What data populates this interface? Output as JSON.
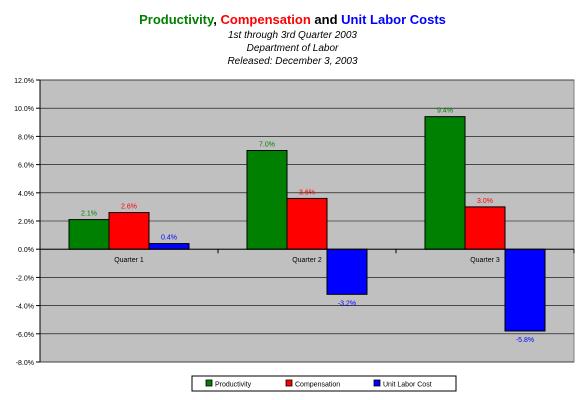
{
  "chart_data": {
    "type": "bar",
    "title_parts": [
      {
        "text": "Productivity",
        "color": "#008000"
      },
      {
        "text": ", ",
        "color": "#000000"
      },
      {
        "text": "Compensation",
        "color": "#ff0000"
      },
      {
        "text": " and ",
        "color": "#000000"
      },
      {
        "text": "Unit Labor Costs",
        "color": "#0000ff"
      }
    ],
    "subtitle_lines": [
      "1st through 3rd Quarter 2003",
      "Department of Labor",
      "Released: December 3, 2003"
    ],
    "categories": [
      "Quarter 1",
      "Quarter 2",
      "Quarter 3"
    ],
    "series": [
      {
        "name": "Productivity",
        "color": "#008000",
        "values": [
          2.1,
          7.0,
          9.4
        ],
        "labels": [
          "2.1%",
          "7.0%",
          "9.4%"
        ]
      },
      {
        "name": "Compensation",
        "color": "#ff0000",
        "values": [
          2.6,
          3.6,
          3.0
        ],
        "labels": [
          "2.6%",
          "3.6%",
          "3.0%"
        ]
      },
      {
        "name": "Unit Labor Cost",
        "color": "#0000ff",
        "values": [
          0.4,
          -3.2,
          -5.8
        ],
        "labels": [
          "0.4%",
          "-3.2%",
          "-5.8%"
        ]
      }
    ],
    "ylim": [
      -8,
      12
    ],
    "yticks": [
      12,
      10,
      8,
      6,
      4,
      2,
      0,
      -2,
      -4,
      -6,
      -8
    ],
    "ytick_labels": [
      "12.0%",
      "10.0%",
      "8.0%",
      "6.0%",
      "4.0%",
      "2.0%",
      "0.0%",
      "-2.0%",
      "-4.0%",
      "-6.0%",
      "-8.0%"
    ],
    "plot_background": "#c0c0c0",
    "grid": "horizontal",
    "legend_position": "bottom-center"
  }
}
